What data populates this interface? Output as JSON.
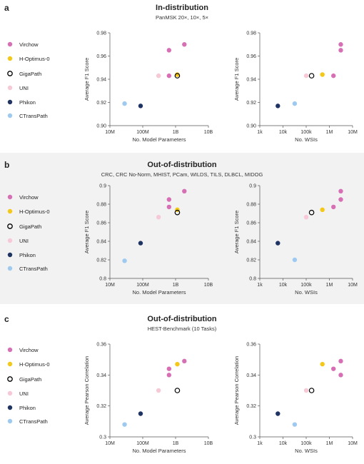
{
  "colors": {
    "Virchow": "#d66fb4",
    "H-Optimus-0": "#f4c816",
    "GigaPath": "#000000",
    "UNI": "#f7c8d6",
    "Phikon": "#1f3463",
    "CTransPath": "#9fcaf0"
  },
  "legend": [
    "Virchow",
    "H-Optimus-0",
    "GigaPath",
    "UNI",
    "Phikon",
    "CTransPath"
  ],
  "panels": [
    {
      "label": "a",
      "title": "In-distribution",
      "subtitle": "PanMSK 20×, 10×, 5×",
      "ylabel": "Average F1 Score",
      "ylim": [
        0.9,
        0.98
      ],
      "yticks": [
        "0.90",
        "0.92",
        "0.94",
        "0.96",
        "0.98"
      ],
      "ytick_values": [
        0.9,
        0.92,
        0.94,
        0.96,
        0.98
      ]
    },
    {
      "label": "b",
      "title": "Out-of-distribution",
      "subtitle": "CRC, CRC No-Norm, MHIST, PCam, WILDS, TILS, DLBCL, MIDOG",
      "ylabel": "Average F1 Score",
      "ylim": [
        0.8,
        0.9
      ],
      "yticks": [
        "0.8",
        "0.82",
        "0.84",
        "0.86",
        "0.88",
        "0.9"
      ],
      "ytick_values": [
        0.8,
        0.82,
        0.84,
        0.86,
        0.88,
        0.9
      ]
    },
    {
      "label": "c",
      "title": "Out-of-distribution",
      "subtitle": "HEST-Benchmark (10 Tasks)",
      "ylabel": "Average Pearson Correlation",
      "ylim": [
        0.3,
        0.36
      ],
      "yticks": [
        "0.3",
        "0.32",
        "0.34",
        "0.36"
      ],
      "ytick_values": [
        0.3,
        0.32,
        0.34,
        0.36
      ]
    }
  ],
  "xaxes": {
    "params": {
      "xlabel": "No. Model Parameters",
      "xlim": [
        10000000,
        10000000000
      ],
      "xticks": [
        "10M",
        "100M",
        "1B",
        "10B"
      ],
      "xtick_values": [
        10000000,
        100000000,
        1000000000,
        10000000000
      ]
    },
    "wsis": {
      "xlabel": "No. WSIs",
      "xlim": [
        1000,
        10000000
      ],
      "xticks": [
        "1k",
        "10k",
        "100k",
        "1M",
        "10M"
      ],
      "xtick_values": [
        1000,
        10000,
        100000,
        1000000,
        10000000
      ]
    }
  },
  "chart_data": [
    {
      "type": "scatter",
      "panel": "a",
      "xaxis": "params",
      "log_x": true,
      "points": [
        {
          "model": "Virchow",
          "x": 632000000,
          "y": 0.965
        },
        {
          "model": "Virchow",
          "x": 1850000000,
          "y": 0.97
        },
        {
          "model": "Virchow",
          "x": 632000000,
          "y": 0.943
        },
        {
          "model": "H-Optimus-0",
          "x": 1130000000,
          "y": 0.944
        },
        {
          "model": "GigaPath",
          "x": 1130000000,
          "y": 0.943
        },
        {
          "model": "UNI",
          "x": 303000000,
          "y": 0.943
        },
        {
          "model": "Phikon",
          "x": 86000000,
          "y": 0.917
        },
        {
          "model": "CTransPath",
          "x": 28000000,
          "y": 0.919
        }
      ]
    },
    {
      "type": "scatter",
      "panel": "a",
      "xaxis": "wsis",
      "log_x": true,
      "points": [
        {
          "model": "Virchow",
          "x": 3100000,
          "y": 0.97
        },
        {
          "model": "Virchow",
          "x": 3100000,
          "y": 0.965
        },
        {
          "model": "Virchow",
          "x": 1500000,
          "y": 0.943
        },
        {
          "model": "H-Optimus-0",
          "x": 500000,
          "y": 0.944
        },
        {
          "model": "GigaPath",
          "x": 171000,
          "y": 0.943
        },
        {
          "model": "UNI",
          "x": 100000,
          "y": 0.943
        },
        {
          "model": "Phikon",
          "x": 6000,
          "y": 0.917
        },
        {
          "model": "CTransPath",
          "x": 32000,
          "y": 0.919
        }
      ]
    },
    {
      "type": "scatter",
      "panel": "b",
      "xaxis": "params",
      "log_x": true,
      "points": [
        {
          "model": "Virchow",
          "x": 1850000000,
          "y": 0.894
        },
        {
          "model": "Virchow",
          "x": 632000000,
          "y": 0.885
        },
        {
          "model": "Virchow",
          "x": 632000000,
          "y": 0.877
        },
        {
          "model": "H-Optimus-0",
          "x": 1130000000,
          "y": 0.874
        },
        {
          "model": "GigaPath",
          "x": 1130000000,
          "y": 0.871
        },
        {
          "model": "UNI",
          "x": 303000000,
          "y": 0.866
        },
        {
          "model": "Phikon",
          "x": 86000000,
          "y": 0.838
        },
        {
          "model": "CTransPath",
          "x": 28000000,
          "y": 0.819
        }
      ]
    },
    {
      "type": "scatter",
      "panel": "b",
      "xaxis": "wsis",
      "log_x": true,
      "points": [
        {
          "model": "Virchow",
          "x": 3100000,
          "y": 0.894
        },
        {
          "model": "Virchow",
          "x": 3100000,
          "y": 0.885
        },
        {
          "model": "Virchow",
          "x": 1500000,
          "y": 0.877
        },
        {
          "model": "H-Optimus-0",
          "x": 500000,
          "y": 0.874
        },
        {
          "model": "GigaPath",
          "x": 171000,
          "y": 0.871
        },
        {
          "model": "UNI",
          "x": 100000,
          "y": 0.866
        },
        {
          "model": "Phikon",
          "x": 6000,
          "y": 0.838
        },
        {
          "model": "CTransPath",
          "x": 32000,
          "y": 0.82
        }
      ]
    },
    {
      "type": "scatter",
      "panel": "c",
      "xaxis": "params",
      "log_x": true,
      "points": [
        {
          "model": "Virchow",
          "x": 1850000000,
          "y": 0.349
        },
        {
          "model": "Virchow",
          "x": 632000000,
          "y": 0.344
        },
        {
          "model": "Virchow",
          "x": 632000000,
          "y": 0.34
        },
        {
          "model": "H-Optimus-0",
          "x": 1130000000,
          "y": 0.347
        },
        {
          "model": "GigaPath",
          "x": 1130000000,
          "y": 0.33
        },
        {
          "model": "UNI",
          "x": 303000000,
          "y": 0.33
        },
        {
          "model": "Phikon",
          "x": 86000000,
          "y": 0.315
        },
        {
          "model": "CTransPath",
          "x": 28000000,
          "y": 0.308
        }
      ]
    },
    {
      "type": "scatter",
      "panel": "c",
      "xaxis": "wsis",
      "log_x": true,
      "points": [
        {
          "model": "Virchow",
          "x": 3100000,
          "y": 0.349
        },
        {
          "model": "Virchow",
          "x": 1500000,
          "y": 0.344
        },
        {
          "model": "Virchow",
          "x": 3100000,
          "y": 0.34
        },
        {
          "model": "H-Optimus-0",
          "x": 500000,
          "y": 0.347
        },
        {
          "model": "GigaPath",
          "x": 171000,
          "y": 0.33
        },
        {
          "model": "UNI",
          "x": 100000,
          "y": 0.33
        },
        {
          "model": "Phikon",
          "x": 6000,
          "y": 0.315
        },
        {
          "model": "CTransPath",
          "x": 32000,
          "y": 0.308
        }
      ]
    }
  ]
}
